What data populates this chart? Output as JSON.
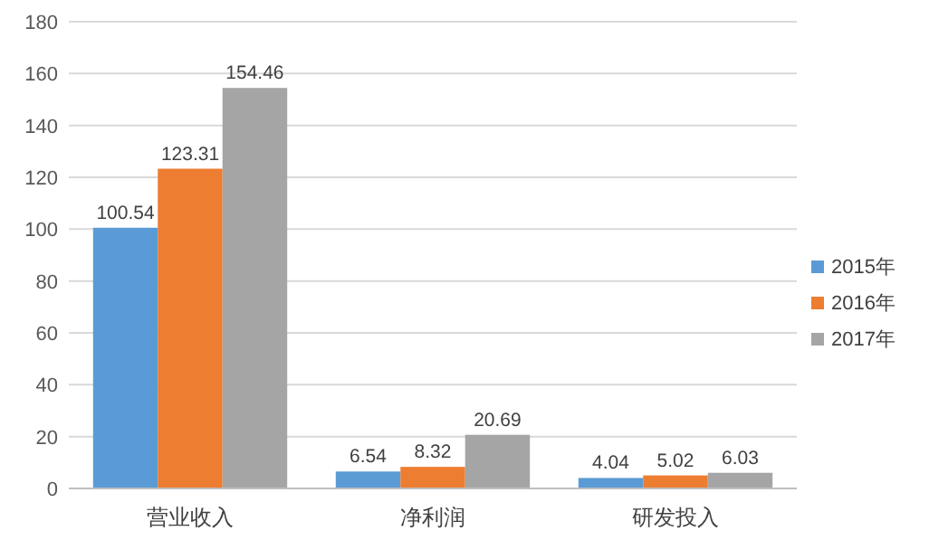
{
  "chart_data": {
    "type": "bar",
    "categories": [
      "营业收入",
      "净利润",
      "研发投入"
    ],
    "series": [
      {
        "name": "2015年",
        "color": "#5b9bd5",
        "values": [
          100.54,
          6.54,
          4.04
        ]
      },
      {
        "name": "2016年",
        "color": "#ed7d31",
        "values": [
          123.31,
          8.32,
          5.02
        ]
      },
      {
        "name": "2017年",
        "color": "#a5a5a5",
        "values": [
          154.46,
          20.69,
          6.03
        ]
      }
    ],
    "ylim": [
      0,
      180
    ],
    "yticks": [
      0,
      20,
      40,
      60,
      80,
      100,
      120,
      140,
      160,
      180
    ],
    "grid": "y",
    "legend": "right",
    "data_labels": true
  }
}
